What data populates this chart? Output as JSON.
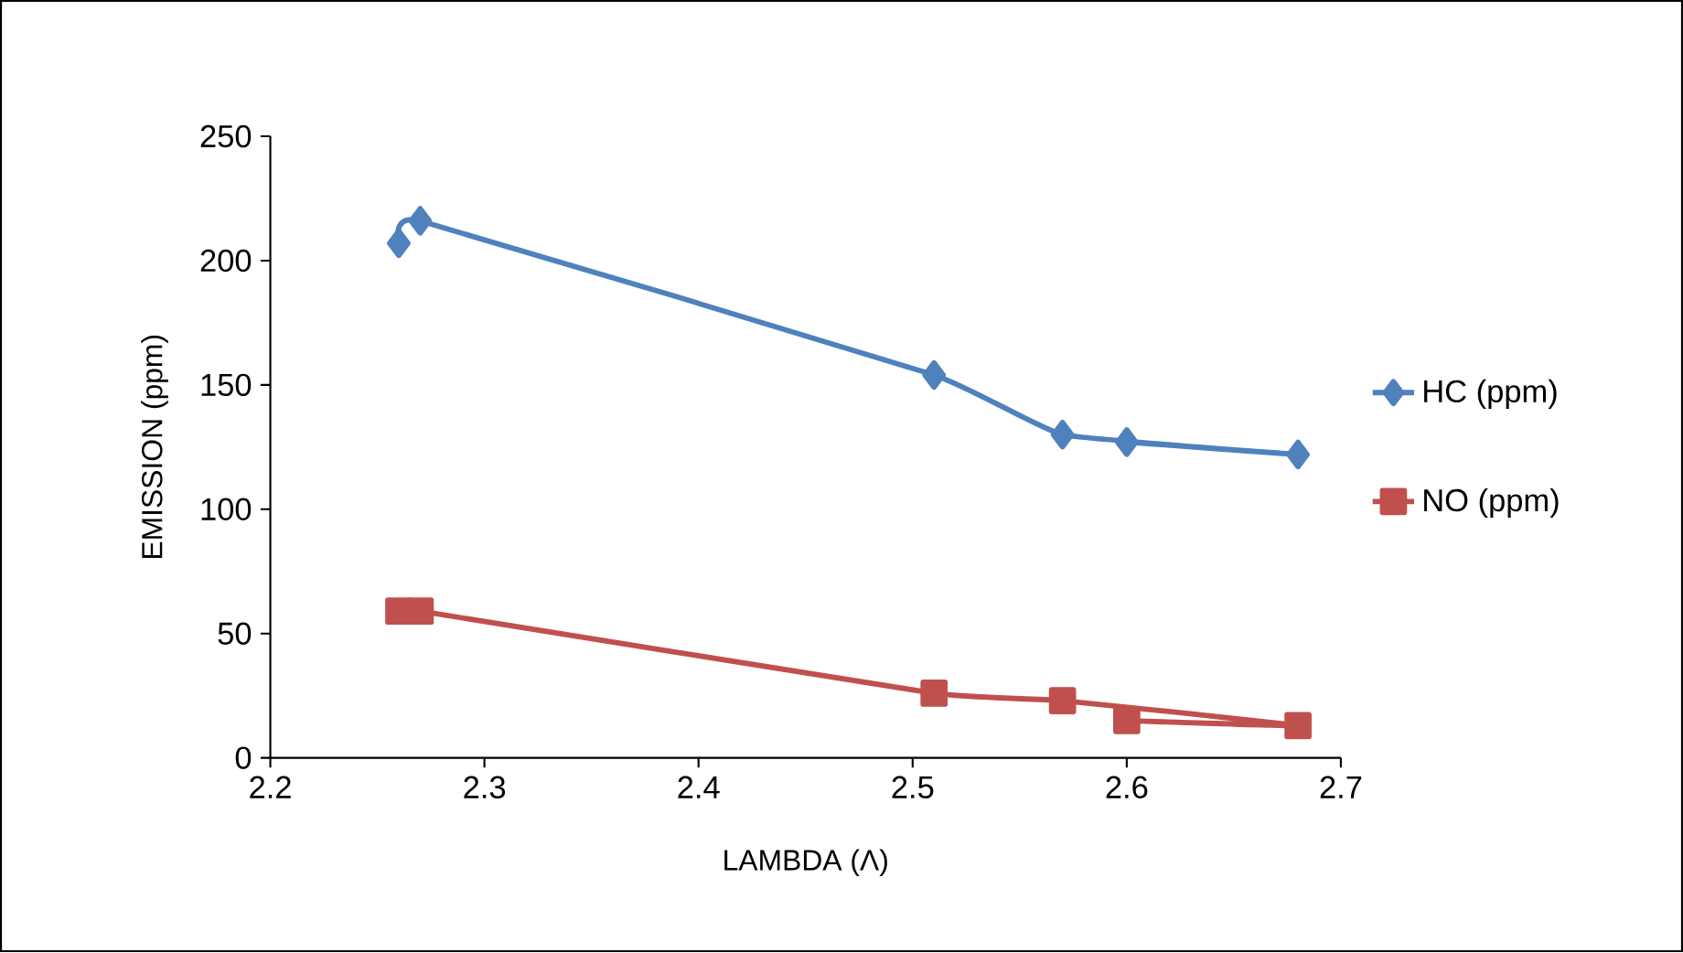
{
  "chart_data": {
    "type": "line",
    "xlabel": "LAMBDA (Λ)",
    "ylabel": "EMISSION (ppm)",
    "xlim": [
      2.2,
      2.7
    ],
    "xticks": [
      2.2,
      2.3,
      2.4,
      2.5,
      2.6,
      2.7
    ],
    "ylim": [
      0,
      250
    ],
    "yticks": [
      0,
      50,
      100,
      150,
      200,
      250
    ],
    "grid": false,
    "legend": "right",
    "line_style": "solid",
    "series": [
      {
        "name": "HC (ppm)",
        "color": "#4f81bd",
        "marker": "diamond",
        "x": [
          2.26,
          2.27,
          2.51,
          2.57,
          2.68,
          2.6
        ],
        "values": [
          207,
          216,
          154,
          130,
          122,
          127
        ]
      },
      {
        "name": "NO (ppm)",
        "color": "#c0504d",
        "marker": "square",
        "x": [
          2.26,
          2.27,
          2.51,
          2.57,
          2.68,
          2.6
        ],
        "values": [
          59,
          59,
          26,
          23,
          13,
          15
        ]
      }
    ]
  }
}
